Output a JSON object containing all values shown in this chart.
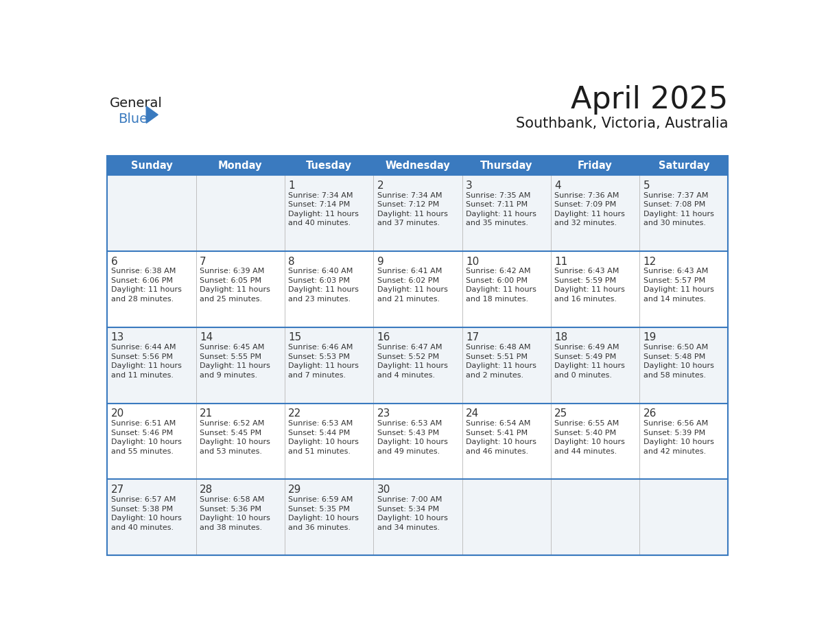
{
  "title": "April 2025",
  "subtitle": "Southbank, Victoria, Australia",
  "header_bg": "#3a7abf",
  "header_text": "#ffffff",
  "row_bg_odd": "#f0f4f8",
  "row_bg_even": "#ffffff",
  "text_color": "#333333",
  "day_names": [
    "Sunday",
    "Monday",
    "Tuesday",
    "Wednesday",
    "Thursday",
    "Friday",
    "Saturday"
  ],
  "weeks": [
    [
      {
        "day": "",
        "sunrise": "",
        "sunset": "",
        "daylight": ""
      },
      {
        "day": "",
        "sunrise": "",
        "sunset": "",
        "daylight": ""
      },
      {
        "day": "1",
        "sunrise": "Sunrise: 7:34 AM",
        "sunset": "Sunset: 7:14 PM",
        "daylight": "Daylight: 11 hours\nand 40 minutes."
      },
      {
        "day": "2",
        "sunrise": "Sunrise: 7:34 AM",
        "sunset": "Sunset: 7:12 PM",
        "daylight": "Daylight: 11 hours\nand 37 minutes."
      },
      {
        "day": "3",
        "sunrise": "Sunrise: 7:35 AM",
        "sunset": "Sunset: 7:11 PM",
        "daylight": "Daylight: 11 hours\nand 35 minutes."
      },
      {
        "day": "4",
        "sunrise": "Sunrise: 7:36 AM",
        "sunset": "Sunset: 7:09 PM",
        "daylight": "Daylight: 11 hours\nand 32 minutes."
      },
      {
        "day": "5",
        "sunrise": "Sunrise: 7:37 AM",
        "sunset": "Sunset: 7:08 PM",
        "daylight": "Daylight: 11 hours\nand 30 minutes."
      }
    ],
    [
      {
        "day": "6",
        "sunrise": "Sunrise: 6:38 AM",
        "sunset": "Sunset: 6:06 PM",
        "daylight": "Daylight: 11 hours\nand 28 minutes."
      },
      {
        "day": "7",
        "sunrise": "Sunrise: 6:39 AM",
        "sunset": "Sunset: 6:05 PM",
        "daylight": "Daylight: 11 hours\nand 25 minutes."
      },
      {
        "day": "8",
        "sunrise": "Sunrise: 6:40 AM",
        "sunset": "Sunset: 6:03 PM",
        "daylight": "Daylight: 11 hours\nand 23 minutes."
      },
      {
        "day": "9",
        "sunrise": "Sunrise: 6:41 AM",
        "sunset": "Sunset: 6:02 PM",
        "daylight": "Daylight: 11 hours\nand 21 minutes."
      },
      {
        "day": "10",
        "sunrise": "Sunrise: 6:42 AM",
        "sunset": "Sunset: 6:00 PM",
        "daylight": "Daylight: 11 hours\nand 18 minutes."
      },
      {
        "day": "11",
        "sunrise": "Sunrise: 6:43 AM",
        "sunset": "Sunset: 5:59 PM",
        "daylight": "Daylight: 11 hours\nand 16 minutes."
      },
      {
        "day": "12",
        "sunrise": "Sunrise: 6:43 AM",
        "sunset": "Sunset: 5:57 PM",
        "daylight": "Daylight: 11 hours\nand 14 minutes."
      }
    ],
    [
      {
        "day": "13",
        "sunrise": "Sunrise: 6:44 AM",
        "sunset": "Sunset: 5:56 PM",
        "daylight": "Daylight: 11 hours\nand 11 minutes."
      },
      {
        "day": "14",
        "sunrise": "Sunrise: 6:45 AM",
        "sunset": "Sunset: 5:55 PM",
        "daylight": "Daylight: 11 hours\nand 9 minutes."
      },
      {
        "day": "15",
        "sunrise": "Sunrise: 6:46 AM",
        "sunset": "Sunset: 5:53 PM",
        "daylight": "Daylight: 11 hours\nand 7 minutes."
      },
      {
        "day": "16",
        "sunrise": "Sunrise: 6:47 AM",
        "sunset": "Sunset: 5:52 PM",
        "daylight": "Daylight: 11 hours\nand 4 minutes."
      },
      {
        "day": "17",
        "sunrise": "Sunrise: 6:48 AM",
        "sunset": "Sunset: 5:51 PM",
        "daylight": "Daylight: 11 hours\nand 2 minutes."
      },
      {
        "day": "18",
        "sunrise": "Sunrise: 6:49 AM",
        "sunset": "Sunset: 5:49 PM",
        "daylight": "Daylight: 11 hours\nand 0 minutes."
      },
      {
        "day": "19",
        "sunrise": "Sunrise: 6:50 AM",
        "sunset": "Sunset: 5:48 PM",
        "daylight": "Daylight: 10 hours\nand 58 minutes."
      }
    ],
    [
      {
        "day": "20",
        "sunrise": "Sunrise: 6:51 AM",
        "sunset": "Sunset: 5:46 PM",
        "daylight": "Daylight: 10 hours\nand 55 minutes."
      },
      {
        "day": "21",
        "sunrise": "Sunrise: 6:52 AM",
        "sunset": "Sunset: 5:45 PM",
        "daylight": "Daylight: 10 hours\nand 53 minutes."
      },
      {
        "day": "22",
        "sunrise": "Sunrise: 6:53 AM",
        "sunset": "Sunset: 5:44 PM",
        "daylight": "Daylight: 10 hours\nand 51 minutes."
      },
      {
        "day": "23",
        "sunrise": "Sunrise: 6:53 AM",
        "sunset": "Sunset: 5:43 PM",
        "daylight": "Daylight: 10 hours\nand 49 minutes."
      },
      {
        "day": "24",
        "sunrise": "Sunrise: 6:54 AM",
        "sunset": "Sunset: 5:41 PM",
        "daylight": "Daylight: 10 hours\nand 46 minutes."
      },
      {
        "day": "25",
        "sunrise": "Sunrise: 6:55 AM",
        "sunset": "Sunset: 5:40 PM",
        "daylight": "Daylight: 10 hours\nand 44 minutes."
      },
      {
        "day": "26",
        "sunrise": "Sunrise: 6:56 AM",
        "sunset": "Sunset: 5:39 PM",
        "daylight": "Daylight: 10 hours\nand 42 minutes."
      }
    ],
    [
      {
        "day": "27",
        "sunrise": "Sunrise: 6:57 AM",
        "sunset": "Sunset: 5:38 PM",
        "daylight": "Daylight: 10 hours\nand 40 minutes."
      },
      {
        "day": "28",
        "sunrise": "Sunrise: 6:58 AM",
        "sunset": "Sunset: 5:36 PM",
        "daylight": "Daylight: 10 hours\nand 38 minutes."
      },
      {
        "day": "29",
        "sunrise": "Sunrise: 6:59 AM",
        "sunset": "Sunset: 5:35 PM",
        "daylight": "Daylight: 10 hours\nand 36 minutes."
      },
      {
        "day": "30",
        "sunrise": "Sunrise: 7:00 AM",
        "sunset": "Sunset: 5:34 PM",
        "daylight": "Daylight: 10 hours\nand 34 minutes."
      },
      {
        "day": "",
        "sunrise": "",
        "sunset": "",
        "daylight": ""
      },
      {
        "day": "",
        "sunrise": "",
        "sunset": "",
        "daylight": ""
      },
      {
        "day": "",
        "sunrise": "",
        "sunset": "",
        "daylight": ""
      }
    ]
  ]
}
